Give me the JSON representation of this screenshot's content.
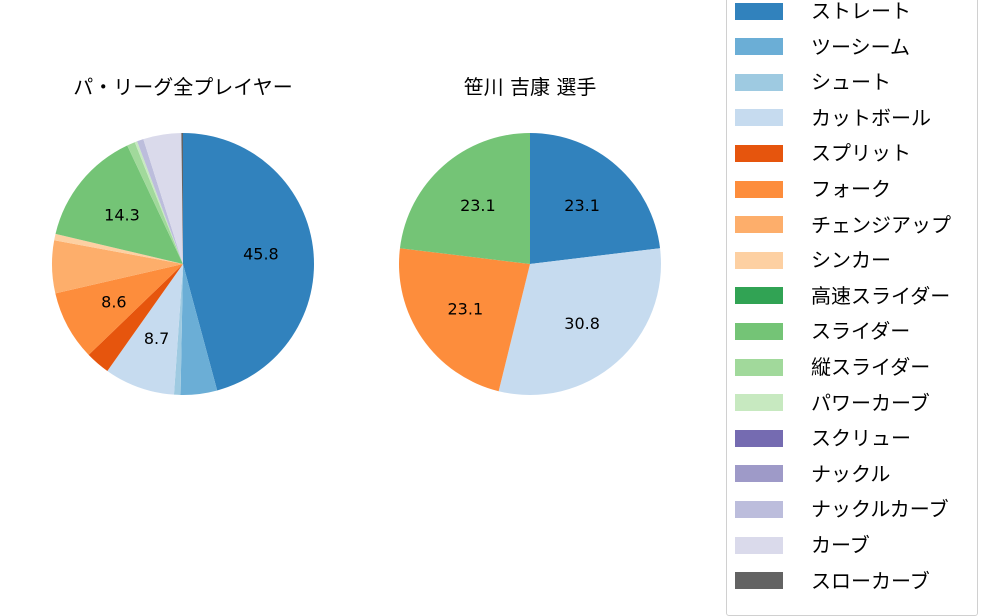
{
  "chart_data": [
    {
      "type": "pie",
      "title": "パ・リーグ全プレイヤー",
      "start_angle": 90,
      "direction": "clockwise",
      "categories": [
        "ストレート",
        "ツーシーム",
        "シュート",
        "カットボール",
        "スプリット",
        "フォーク",
        "チェンジアップ",
        "シンカー",
        "高速スライダー",
        "スライダー",
        "縦スライダー",
        "パワーカーブ",
        "スクリュー",
        "ナックル",
        "ナックルカーブ",
        "カーブ",
        "スローカーブ"
      ],
      "values": [
        45.8,
        4.5,
        0.8,
        8.7,
        3.0,
        8.6,
        6.5,
        0.8,
        0.0,
        14.3,
        1.0,
        0.3,
        0.0,
        0.0,
        0.8,
        4.7,
        0.2
      ],
      "labeled_values": {
        "ストレート": "45.8",
        "カットボール": "8.7",
        "フォーク": "8.6",
        "スライダー": "14.3"
      }
    },
    {
      "type": "pie",
      "title": "笹川 吉康  選手",
      "start_angle": 90,
      "direction": "clockwise",
      "categories": [
        "ストレート",
        "カットボール",
        "フォーク",
        "スライダー"
      ],
      "values": [
        23.1,
        30.8,
        23.1,
        23.1
      ],
      "labeled_values": {
        "ストレート": "23.1",
        "カットボール": "30.8",
        "フォーク": "23.1",
        "スライダー": "23.1"
      }
    }
  ],
  "titles": {
    "left": "パ・リーグ全プレイヤー",
    "right": "笹川 吉康  選手"
  },
  "legend": {
    "items": [
      {
        "label": "ストレート",
        "color": "#3182bd"
      },
      {
        "label": "ツーシーム",
        "color": "#6baed6"
      },
      {
        "label": "シュート",
        "color": "#9ecae1"
      },
      {
        "label": "カットボール",
        "color": "#c6dbef"
      },
      {
        "label": "スプリット",
        "color": "#e6550d"
      },
      {
        "label": "フォーク",
        "color": "#fd8d3c"
      },
      {
        "label": "チェンジアップ",
        "color": "#fdae6b"
      },
      {
        "label": "シンカー",
        "color": "#fdd0a2"
      },
      {
        "label": "高速スライダー",
        "color": "#31a354"
      },
      {
        "label": "スライダー",
        "color": "#74c476"
      },
      {
        "label": "縦スライダー",
        "color": "#a1d99b"
      },
      {
        "label": "パワーカーブ",
        "color": "#c7e9c0"
      },
      {
        "label": "スクリュー",
        "color": "#756bb1"
      },
      {
        "label": "ナックル",
        "color": "#9e9ac8"
      },
      {
        "label": "ナックルカーブ",
        "color": "#bcbddc"
      },
      {
        "label": "カーブ",
        "color": "#dadaeb"
      },
      {
        "label": "スローカーブ",
        "color": "#636363"
      }
    ]
  }
}
